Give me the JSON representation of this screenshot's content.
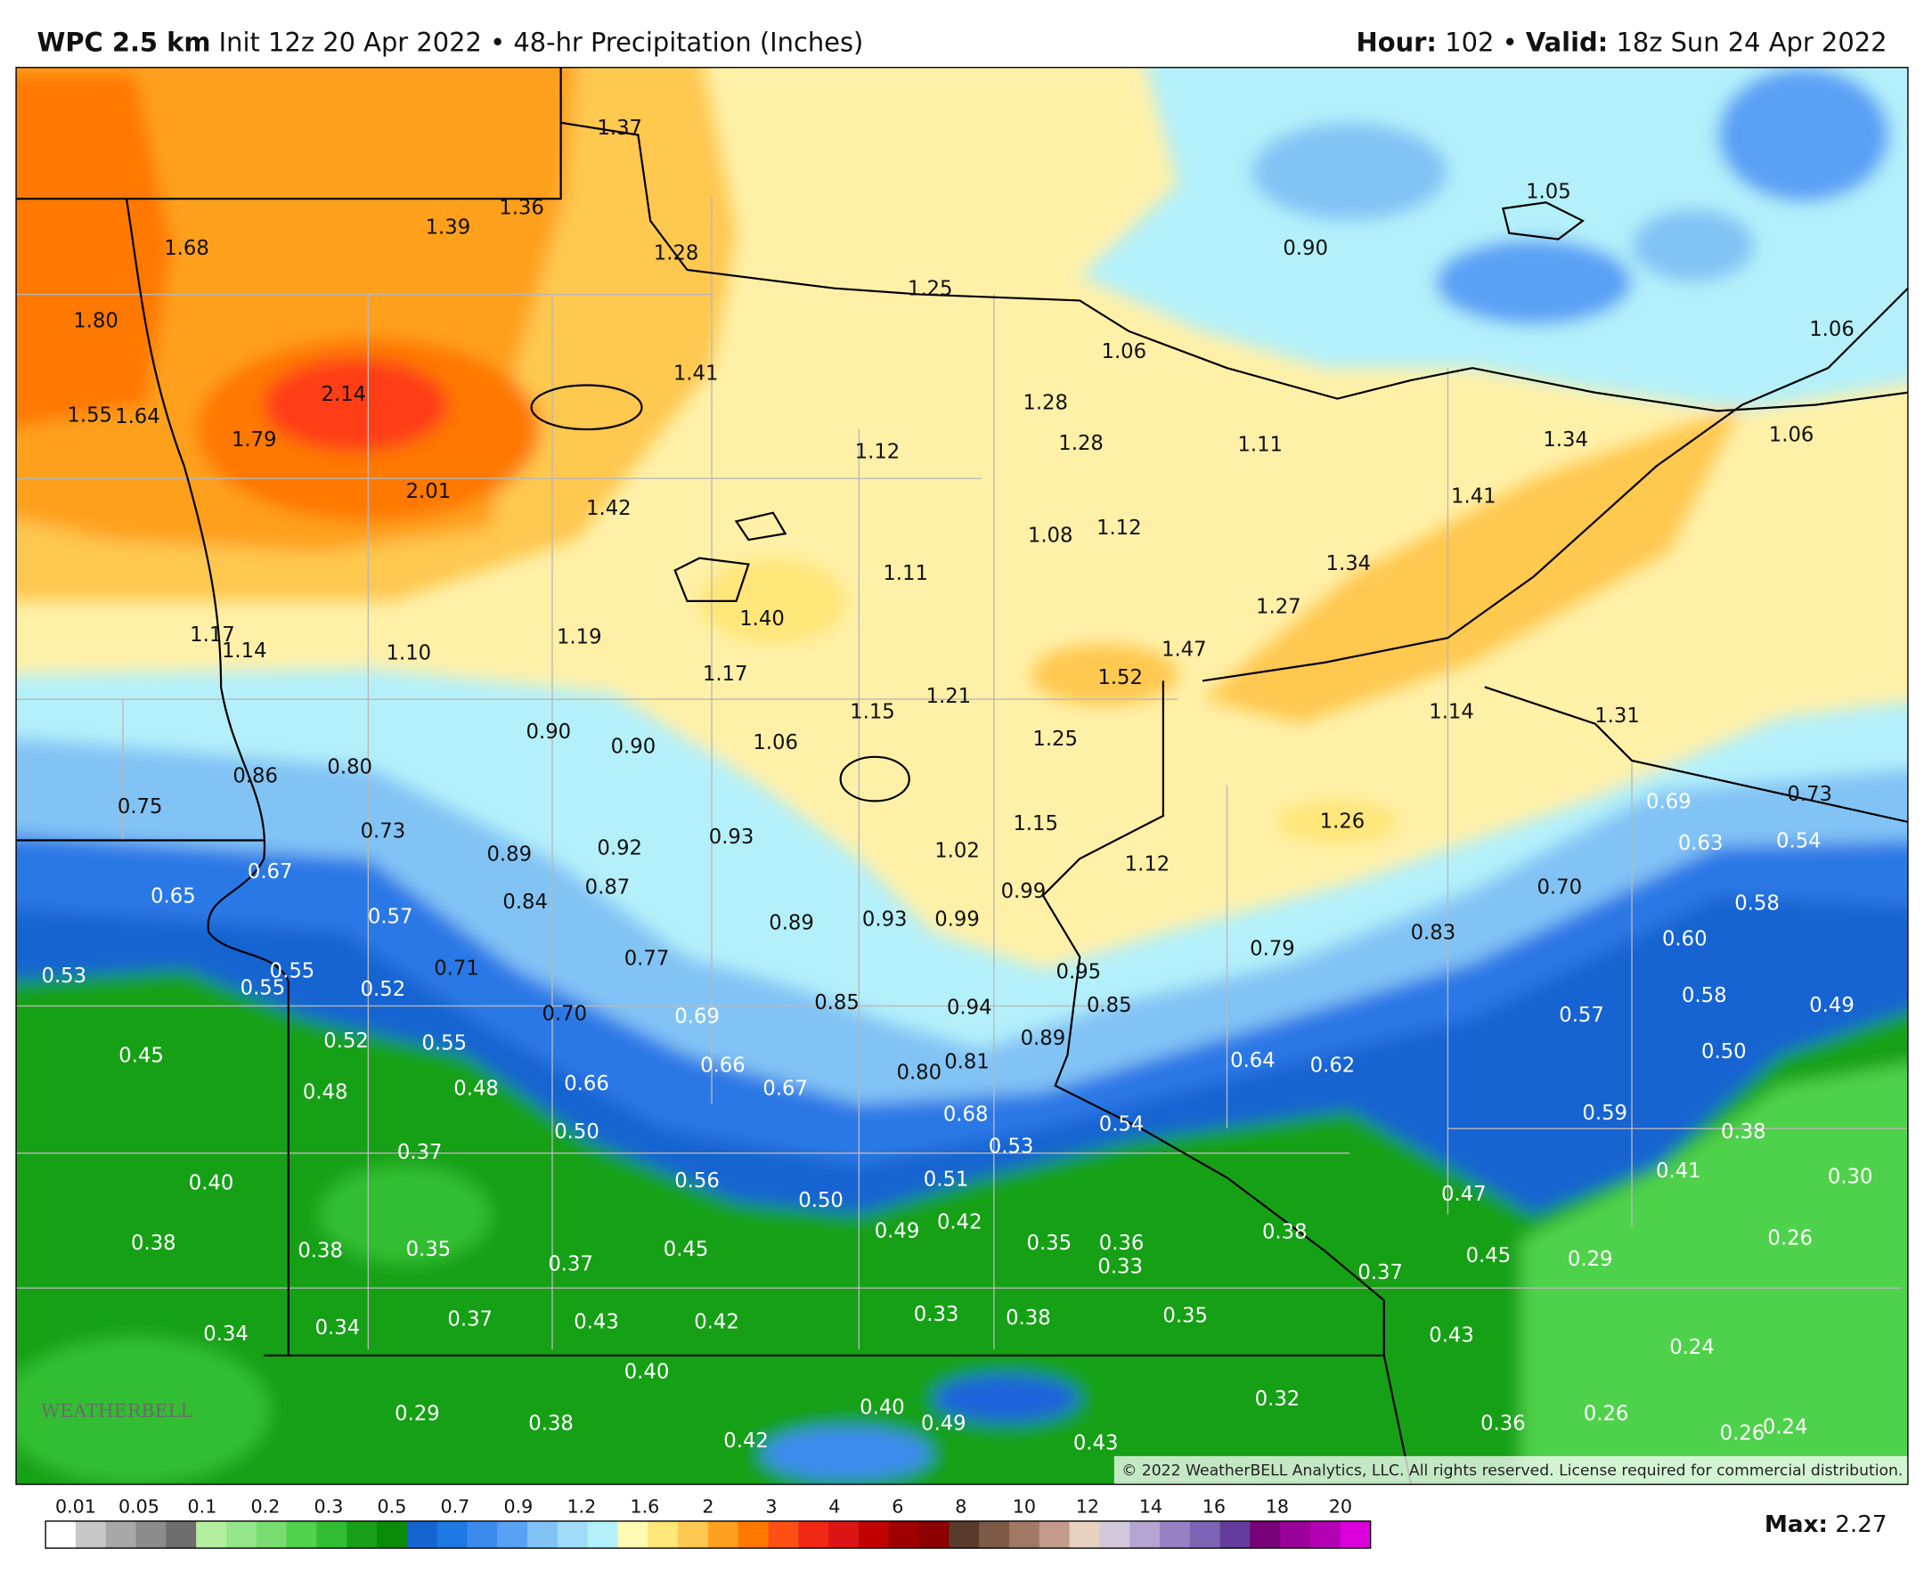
{
  "header": {
    "model": "WPC 2.5 km",
    "description": "Init 12z 20 Apr 2022 • 48-hr Precipitation (Inches)",
    "hour_label": "Hour:",
    "hour_value": "102",
    "separator": "•",
    "valid_label": "Valid:",
    "valid_value": "18z Sun 24 Apr 2022"
  },
  "map": {
    "point_values": [
      "1.37",
      "1.36",
      "1.39",
      "1.68",
      "1.28",
      "1.25",
      "1.05",
      "0.90",
      "1.80",
      "1.06",
      "1.06",
      "1.41",
      "2.14",
      "1.28",
      "1.55",
      "1.64",
      "1.79",
      "1.12",
      "1.28",
      "1.11",
      "1.34",
      "1.06",
      "2.01",
      "1.42",
      "1.41",
      "1.08",
      "1.12",
      "1.11",
      "1.34",
      "1.40",
      "1.27",
      "1.17",
      "1.14",
      "1.10",
      "1.19",
      "1.47",
      "1.52",
      "1.17",
      "1.21",
      "1.15",
      "1.14",
      "1.31",
      "0.90",
      "0.90",
      "1.06",
      "1.25",
      "0.86",
      "0.80",
      "0.75",
      "1.15",
      "1.26",
      "0.69",
      "0.73",
      "0.73",
      "0.89",
      "0.92",
      "0.93",
      "1.02",
      "1.12",
      "0.63",
      "0.54",
      "0.67",
      "0.65",
      "0.87",
      "0.84",
      "0.99",
      "0.70",
      "0.58",
      "0.57",
      "0.89",
      "0.93",
      "0.99",
      "0.79",
      "0.83",
      "0.60",
      "0.53",
      "0.55",
      "0.55",
      "0.52",
      "0.71",
      "0.77",
      "0.95",
      "0.85",
      "0.94",
      "0.85",
      "0.70",
      "0.69",
      "0.57",
      "0.58",
      "0.49",
      "0.52",
      "0.55",
      "0.89",
      "0.45",
      "0.66",
      "0.81",
      "0.80",
      "0.64",
      "0.62",
      "0.50",
      "0.48",
      "0.48",
      "0.66",
      "0.67",
      "0.68",
      "0.54",
      "0.59",
      "0.38",
      "0.50",
      "0.53",
      "0.37",
      "0.40",
      "0.56",
      "0.51",
      "0.50",
      "0.47",
      "0.41",
      "0.30",
      "0.49",
      "0.42",
      "0.38",
      "0.38",
      "0.38",
      "0.35",
      "0.37",
      "0.45",
      "0.35",
      "0.36",
      "0.33",
      "0.45",
      "0.29",
      "0.26",
      "0.37",
      "0.34",
      "0.34",
      "0.37",
      "0.43",
      "0.42",
      "0.33",
      "0.38",
      "0.35",
      "0.43",
      "0.24",
      "0.40",
      "0.32",
      "0.29",
      "0.38",
      "0.40",
      "0.49",
      "0.36",
      "0.26",
      "0.26",
      "0.24",
      "0.42",
      "0.43"
    ],
    "logo": "WEATHERBELL",
    "copyright": "© 2022 WeatherBELL Analytics, LLC. All rights reserved. License required for commercial distribution."
  },
  "colorbar": {
    "ticks": [
      0.01,
      0.05,
      0.1,
      0.2,
      0.3,
      0.5,
      0.7,
      0.9,
      1.2,
      1.6,
      2,
      3,
      4,
      6,
      8,
      10,
      12,
      14,
      16,
      18,
      20
    ],
    "colors": [
      "#ffffff",
      "#c8c8c8",
      "#a8a8a8",
      "#8c8c8c",
      "#6e6e6e",
      "#b4f0a0",
      "#96e68c",
      "#78dc6e",
      "#50d24b",
      "#32be32",
      "#19a019",
      "#0a8c0a",
      "#1464d2",
      "#1e78e6",
      "#3c8cf0",
      "#5aa0f5",
      "#82c3f5",
      "#a0dcfa",
      "#b4f0fa",
      "#fffab4",
      "#ffe678",
      "#ffc850",
      "#ffa01e",
      "#ff7800",
      "#ff5014",
      "#f02814",
      "#dc1414",
      "#c00000",
      "#a00000",
      "#8c0000",
      "#5a3c2d",
      "#7d5a46",
      "#a07864",
      "#c39b8c",
      "#e6d2be",
      "#d2c8dc",
      "#b4a5d2",
      "#9682c3",
      "#7d64b4",
      "#643c9b",
      "#780078",
      "#9a009a",
      "#b400b4",
      "#dc00dc"
    ]
  },
  "max": {
    "label": "Max:",
    "value": "2.27"
  }
}
